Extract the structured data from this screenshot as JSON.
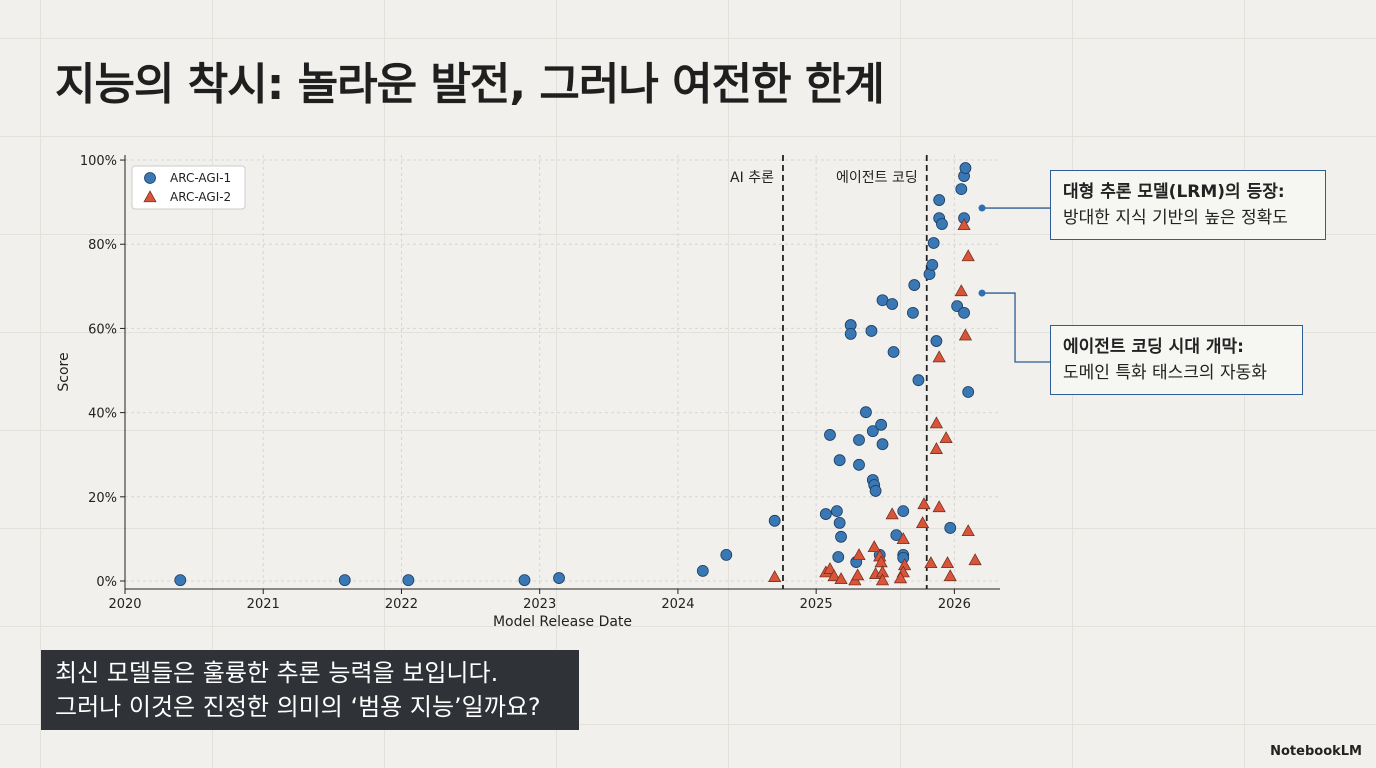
{
  "title": "지능의 착시: 놀라운 발전, 그러나 여전한 한계",
  "chart_data": {
    "type": "scatter",
    "x_label": "Model Release Date",
    "y_label": "Score",
    "xlim": [
      2020,
      2026.33
    ],
    "xticks": [
      2020,
      2021,
      2022,
      2023,
      2024,
      2025,
      2026
    ],
    "ylim": [
      -1.9,
      101.2
    ],
    "yticks": [
      {
        "value": 0,
        "label": "0%"
      },
      {
        "value": 20,
        "label": "20%"
      },
      {
        "value": 40,
        "label": "40%"
      },
      {
        "value": 60,
        "label": "60%"
      },
      {
        "value": 80,
        "label": "80%"
      },
      {
        "value": 100,
        "label": "100%"
      }
    ],
    "grid": true,
    "legend": "upper left",
    "series": [
      {
        "name": "ARC-AGI-1",
        "color": "#3a78b5",
        "marker": "circle",
        "x": [
          2020.4,
          2021.59,
          2022.05,
          2022.89,
          2023.14,
          2024.18,
          2024.35,
          2024.7,
          2025.07,
          2025.1,
          2025.15,
          2025.17,
          2025.18,
          2025.16,
          2025.17,
          2025.25,
          2025.25,
          2025.29,
          2025.31,
          2025.31,
          2025.36,
          2025.4,
          2025.41,
          2025.41,
          2025.42,
          2025.43,
          2025.46,
          2025.47,
          2025.48,
          2025.48,
          2025.55,
          2025.56,
          2025.58,
          2025.63,
          2025.63,
          2025.63,
          2025.7,
          2025.71,
          2025.74,
          2025.82,
          2025.84,
          2025.85,
          2025.87,
          2025.89,
          2025.89,
          2025.91,
          2025.97,
          2026.02,
          2026.05,
          2026.07,
          2026.08,
          2026.07,
          2026.07,
          2026.1
        ],
        "values": [
          0.2,
          0.2,
          0.2,
          0.2,
          0.7,
          2.4,
          6.2,
          14.3,
          15.9,
          34.7,
          16.6,
          13.8,
          10.5,
          5.7,
          28.7,
          60.8,
          58.7,
          4.5,
          33.5,
          27.6,
          40.1,
          59.4,
          35.6,
          24.0,
          22.8,
          21.4,
          6.2,
          37.1,
          32.5,
          66.7,
          65.8,
          54.4,
          10.9,
          16.6,
          6.2,
          5.5,
          63.7,
          70.3,
          47.7,
          72.9,
          75.1,
          80.3,
          57.0,
          90.5,
          86.2,
          84.8,
          12.6,
          65.3,
          93.1,
          96.2,
          98.1,
          86.2,
          63.7,
          44.9
        ]
      },
      {
        "name": "ARC-AGI-2",
        "color": "#d9553a",
        "marker": "triangle",
        "x": [
          2024.7,
          2025.07,
          2025.1,
          2025.13,
          2025.18,
          2025.28,
          2025.3,
          2025.31,
          2025.42,
          2025.43,
          2025.46,
          2025.47,
          2025.48,
          2025.48,
          2025.55,
          2025.63,
          2025.64,
          2025.63,
          2025.61,
          2025.78,
          2025.77,
          2025.83,
          2025.87,
          2025.87,
          2025.89,
          2025.89,
          2025.94,
          2025.95,
          2025.97,
          2026.05,
          2026.07,
          2026.08,
          2026.1,
          2026.1,
          2026.15
        ],
        "values": [
          1.0,
          2.1,
          2.9,
          1.2,
          0.5,
          0.2,
          1.4,
          6.2,
          8.1,
          1.7,
          5.9,
          4.5,
          2.1,
          0.2,
          15.9,
          10.0,
          3.8,
          2.1,
          0.7,
          18.3,
          13.8,
          4.3,
          37.5,
          31.4,
          53.2,
          17.6,
          34.0,
          4.3,
          1.2,
          68.9,
          84.6,
          58.4,
          77.2,
          11.9,
          5.0
        ]
      }
    ],
    "vlines": [
      {
        "x": 2024.76,
        "label": "AI 추론"
      },
      {
        "x": 2025.8,
        "label": "에이전트 코딩"
      }
    ],
    "annotations": [
      {
        "x": 2026.2,
        "y": 88.6,
        "heading": "대형 추론 모델(LRM)의 등장:",
        "text": "방대한 지식 기반의 높은 정확도"
      },
      {
        "x": 2026.2,
        "y": 68.4,
        "heading": "에이전트 코딩 시대 개막:",
        "text": "도메인 특화 태스크의 자동화"
      }
    ]
  },
  "caption": [
    "최신 모델들은 훌륭한 추론 능력을 보입니다.",
    "그러나 이것은 진정한 의미의 ‘범용 지능’일까요?"
  ],
  "brand": "NotebookLM"
}
